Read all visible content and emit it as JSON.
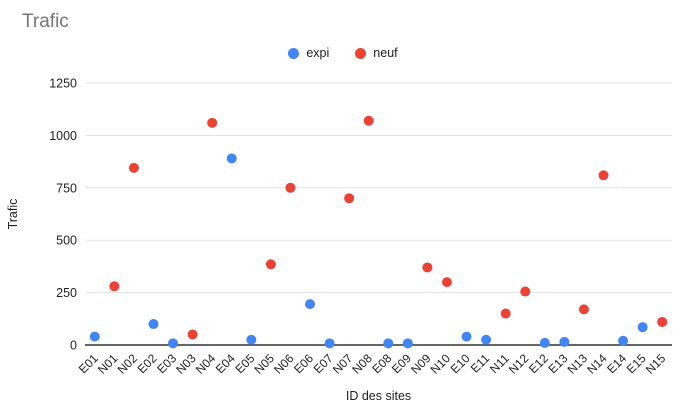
{
  "chart_data": {
    "type": "scatter",
    "title": "Trafic",
    "xlabel": "ID des sites",
    "ylabel": "Trafic",
    "ylim": [
      0,
      1250
    ],
    "yticks": [
      0,
      250,
      500,
      750,
      1000,
      1250
    ],
    "grid": true,
    "legend_position": "top-center",
    "categories": [
      "E01",
      "N01",
      "N02",
      "E02",
      "E03",
      "N03",
      "N04",
      "E04",
      "E05",
      "N05",
      "N06",
      "E06",
      "E07",
      "N07",
      "N08",
      "E08",
      "E09",
      "N09",
      "N10",
      "E10",
      "E11",
      "N11",
      "N12",
      "E12",
      "E13",
      "N13",
      "N14",
      "E14",
      "E15",
      "N15"
    ],
    "series": [
      {
        "name": "expi",
        "color": "#4285F4",
        "points": [
          [
            0,
            40
          ],
          [
            3,
            100
          ],
          [
            4,
            8
          ],
          [
            7,
            890
          ],
          [
            8,
            25
          ],
          [
            11,
            195
          ],
          [
            12,
            8
          ],
          [
            15,
            8
          ],
          [
            16,
            8
          ],
          [
            19,
            40
          ],
          [
            20,
            25
          ],
          [
            23,
            10
          ],
          [
            24,
            15
          ],
          [
            27,
            20
          ],
          [
            28,
            85
          ]
        ]
      },
      {
        "name": "neuf",
        "color": "#EA4335",
        "points": [
          [
            1,
            280
          ],
          [
            2,
            845
          ],
          [
            5,
            50
          ],
          [
            6,
            1060
          ],
          [
            9,
            385
          ],
          [
            10,
            750
          ],
          [
            13,
            700
          ],
          [
            14,
            1070
          ],
          [
            17,
            370
          ],
          [
            18,
            300
          ],
          [
            21,
            150
          ],
          [
            22,
            255
          ],
          [
            25,
            170
          ],
          [
            26,
            810
          ],
          [
            29,
            110
          ]
        ]
      }
    ],
    "colors": {
      "title_text": "#757575",
      "axis_text": "#1f1f1f",
      "gridline": "#e3e3e3",
      "baseline": "#333333",
      "background": "#ffffff"
    }
  }
}
